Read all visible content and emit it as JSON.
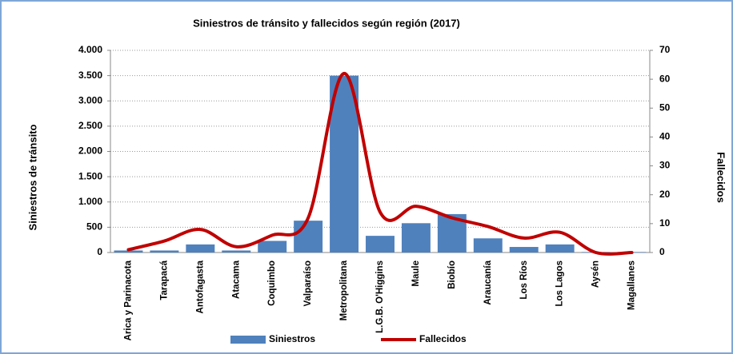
{
  "chart_data": {
    "type": "bar-line",
    "title": "Siniestros de tránsito y fallecidos según región (2017)",
    "y_label": "Siniestros de tránsito",
    "y2_label": "Fallecidos",
    "categories": [
      "Arica y Parinacota",
      "Tarapacá",
      "Antofagasta",
      "Atacama",
      "Coquimbo",
      "Valparaíso",
      "Metropolitana",
      "L.G.B. O'Higgins",
      "Maule",
      "Biobío",
      "Araucanía",
      "Los Ríos",
      "Los Lagos",
      "Aysén",
      "Magallanes"
    ],
    "series": [
      {
        "name": "Siniestros",
        "type": "bar",
        "color": "#4f81bd",
        "values": [
          40,
          40,
          160,
          40,
          230,
          630,
          3500,
          330,
          580,
          760,
          280,
          110,
          160,
          10,
          10
        ]
      },
      {
        "name": "Fallecidos",
        "type": "line",
        "axis": "y2",
        "color": "#c00000",
        "values": [
          1,
          4,
          8,
          2,
          6,
          12,
          62,
          14,
          16,
          12,
          9,
          5,
          7,
          0,
          0
        ]
      }
    ],
    "ylim": [
      0,
      4000
    ],
    "yticks": [
      0,
      500,
      {
        "value": 1000,
        "label": "1.000"
      },
      {
        "value": 1500,
        "label": "1.500"
      },
      {
        "value": 2000,
        "label": "2.000"
      },
      {
        "value": 2500,
        "label": "2.500"
      },
      {
        "value": 3000,
        "label": "3.000"
      },
      {
        "value": 3500,
        "label": "3.500"
      },
      {
        "value": 4000,
        "label": "4.000"
      }
    ],
    "y2lim": [
      0,
      70
    ],
    "y2ticks": [
      0,
      10,
      20,
      30,
      40,
      50,
      60,
      70
    ],
    "grid": true,
    "legend": "bottom"
  }
}
